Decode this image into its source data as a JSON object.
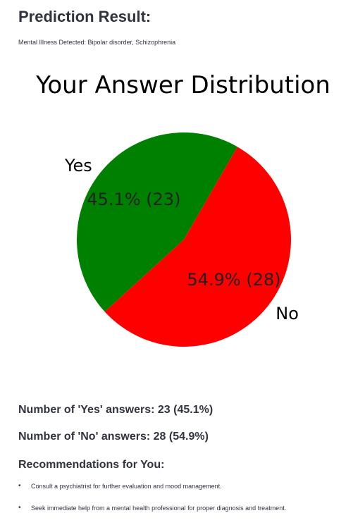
{
  "header": {
    "title": "Prediction Result:",
    "detected": "Mental Illness Detected: Bipolar disorder, Schizophrenia"
  },
  "chart_data": {
    "type": "pie",
    "title": "Your Answer Distribution",
    "categories": [
      "Yes",
      "No"
    ],
    "values": [
      23,
      28
    ],
    "colors": [
      "#008000",
      "#ff0000"
    ],
    "autopct_labels": [
      "45.1% (23)",
      "54.9% (28)"
    ],
    "start_angle_deg": 60,
    "direction": "counterclockwise",
    "legend": "none"
  },
  "stats": {
    "yes": "Number of 'Yes' answers: 23 (45.1%)",
    "no": "Number of 'No' answers: 28 (54.9%)"
  },
  "recommendations": {
    "heading": "Recommendations for You:",
    "items": [
      "Consult a psychiatrist for further evaluation and mood management.",
      "Seek immediate help from a mental health professional for proper diagnosis and treatment."
    ]
  }
}
